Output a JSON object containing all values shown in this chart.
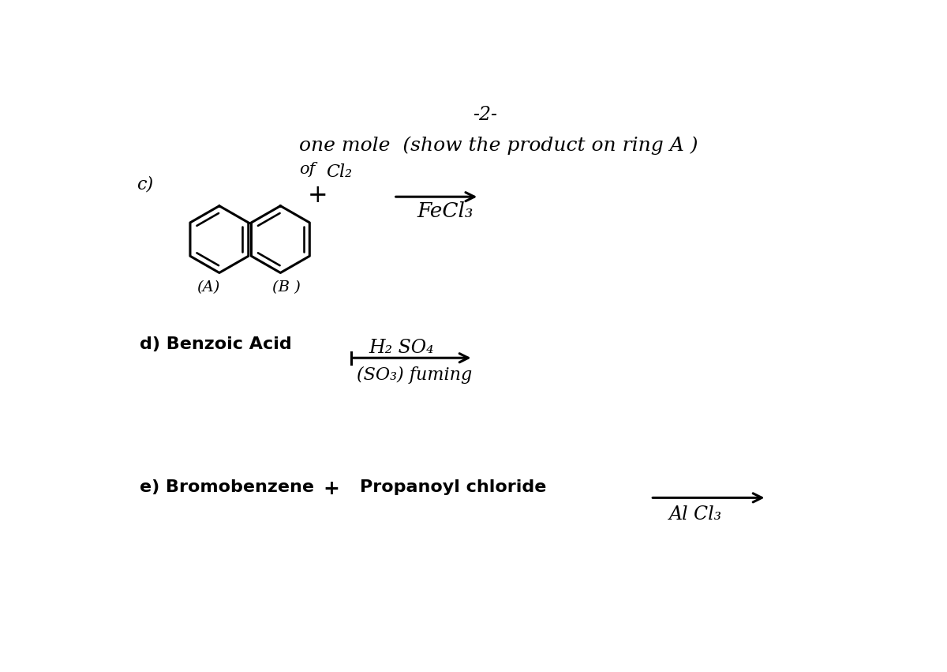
{
  "background_color": "#ffffff",
  "page_number": "-2-",
  "header_line1": "one mole  (show the product on ring A )",
  "header_of": "of",
  "header_cl2": "Cl₂",
  "section_c_label": "c)",
  "section_c_plus": "+",
  "arrow_c_label_below": "FeCl₃",
  "ring_a_label": "(A)",
  "ring_b_label": "(B )",
  "section_d_label": "d) Benzoic Acid",
  "arrow_d_top": "H₂ SO₄",
  "arrow_d_bottom": "(SO₃) fuming",
  "section_e_label": "e) Bromobenzene",
  "section_e_plus": "+",
  "section_e_reagent": "Propanoyl chloride",
  "arrow_e_label": "Al Cl₃",
  "fig_width": 12.0,
  "fig_height": 8.51
}
